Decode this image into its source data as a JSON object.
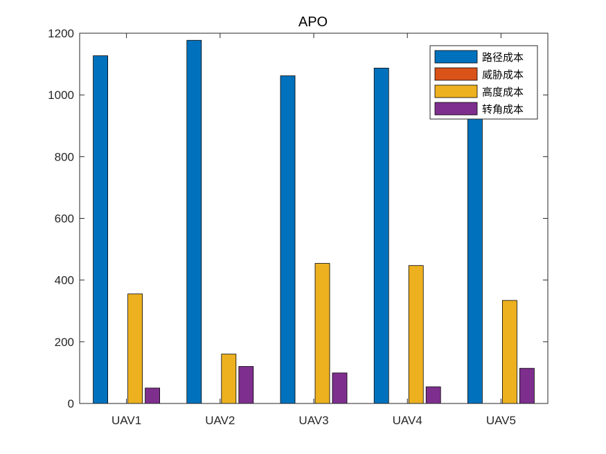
{
  "chart_data": {
    "type": "bar",
    "title": "APO",
    "xlabel": "",
    "ylabel": "",
    "categories": [
      "UAV1",
      "UAV2",
      "UAV3",
      "UAV4",
      "UAV5"
    ],
    "ylim": [
      0,
      1200
    ],
    "yticks": [
      0,
      200,
      400,
      600,
      800,
      1000,
      1200
    ],
    "series": [
      {
        "name": "路径成本",
        "color": "#0072BD",
        "values": [
          1127,
          1177,
          1062,
          1087,
          1040
        ]
      },
      {
        "name": "威胁成本",
        "color": "#D95319",
        "values": [
          0,
          0,
          0,
          0,
          0
        ]
      },
      {
        "name": "高度成本",
        "color": "#EDB120",
        "values": [
          355,
          160,
          454,
          447,
          334
        ]
      },
      {
        "name": "转角成本",
        "color": "#7E2F8E",
        "values": [
          50,
          120,
          99,
          54,
          114
        ]
      }
    ],
    "grid": false,
    "legend_position": "top-right"
  }
}
